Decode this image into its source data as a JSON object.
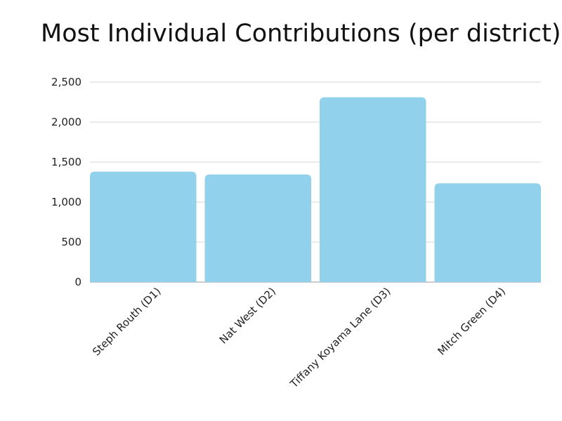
{
  "chart_data": {
    "type": "bar",
    "title": "Most Individual Contributions (per district)",
    "xlabel": "",
    "ylabel": "",
    "categories": [
      "Steph Routh (D1)",
      "Nat West (D2)",
      "Tiffany Koyama Lane (D3)",
      "Mitch Green (D4)"
    ],
    "values": [
      1380,
      1345,
      2310,
      1235
    ],
    "ylim": [
      0,
      2500
    ],
    "yticks": [
      0,
      500,
      1000,
      1500,
      2000,
      2500
    ],
    "ytick_labels": [
      "0",
      "500",
      "1,000",
      "1,500",
      "2,000",
      "2,500"
    ],
    "grid": true,
    "bar_color": "#91d1ec",
    "grid_color": "#d4d4d4"
  }
}
